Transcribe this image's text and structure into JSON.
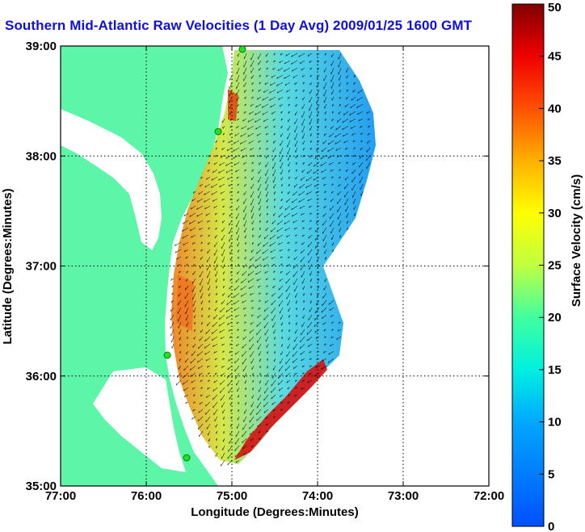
{
  "title": "Southern Mid-Atlantic Raw Velocities (1 Day Avg) 2009/01/25 1600 GMT",
  "xaxis": {
    "label": "Longitude (Degrees:Minutes)",
    "ticks": [
      "77:00",
      "76:00",
      "75:00",
      "74:00",
      "73:00",
      "72:00"
    ]
  },
  "yaxis": {
    "label": "Latitude (Degrees:Minutes)",
    "ticks": [
      "39:00",
      "38:00",
      "37:00",
      "36:00",
      "35:00"
    ]
  },
  "colorbar": {
    "label": "Surface Velocity (cm/s)",
    "ticks": [
      "50",
      "45",
      "40",
      "35",
      "30",
      "25",
      "20",
      "15",
      "10",
      "5",
      "0"
    ],
    "min": 0,
    "max": 50
  },
  "colors": {
    "land": "#5df5a8",
    "water": "#ffffff",
    "title": "#1010d8",
    "station": "#20e020"
  },
  "chart_data": {
    "type": "heatmap",
    "title": "Southern Mid-Atlantic Raw Velocities (1 Day Avg) 2009/01/25 1600 GMT",
    "xlabel": "Longitude (Degrees:Minutes)",
    "ylabel": "Latitude (Degrees:Minutes)",
    "xlim": [
      -77,
      -72
    ],
    "ylim": [
      35,
      39
    ],
    "colorbar_range": [
      0,
      50
    ],
    "colorbar_label": "Surface Velocity (cm/s)",
    "grid": true
  }
}
